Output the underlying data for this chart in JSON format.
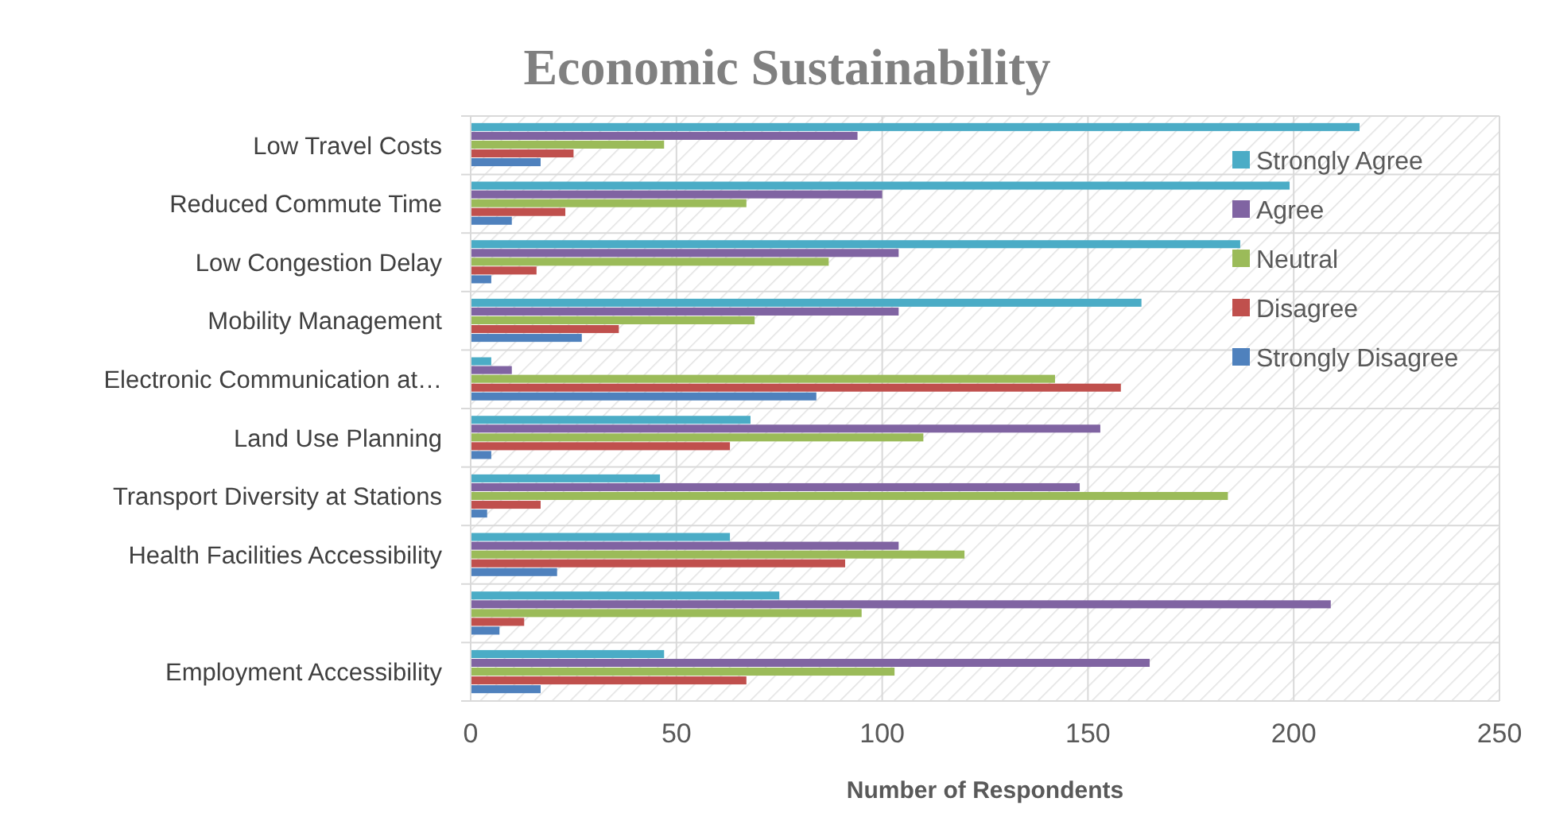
{
  "chart_data": {
    "type": "bar",
    "orientation": "horizontal",
    "title": "Economic Sustainability",
    "xlabel": "Number of Respondents",
    "categories": [
      "Low Travel Costs",
      "Reduced Commute Time",
      "Low Congestion Delay",
      "Mobility Management",
      "Electronic Communication at…",
      "Land Use Planning",
      "Transport Diversity at Stations",
      "Health Facilities Accessibility",
      null,
      "Employment Accessibility"
    ],
    "series": [
      {
        "name": "Strongly Agree",
        "color": "#4bacc6",
        "values": [
          216,
          199,
          187,
          163,
          5,
          68,
          46,
          63,
          75,
          47
        ]
      },
      {
        "name": "Agree",
        "color": "#8064a2",
        "values": [
          94,
          100,
          104,
          104,
          10,
          153,
          148,
          104,
          209,
          165
        ]
      },
      {
        "name": "Neutral",
        "color": "#9bbb59",
        "values": [
          47,
          67,
          87,
          69,
          142,
          110,
          184,
          120,
          95,
          103
        ]
      },
      {
        "name": "Disagree",
        "color": "#c0504d",
        "values": [
          25,
          23,
          16,
          36,
          158,
          63,
          17,
          91,
          13,
          67
        ]
      },
      {
        "name": "Strongly Disagree",
        "color": "#4f81bd",
        "values": [
          17,
          10,
          5,
          27,
          84,
          5,
          4,
          21,
          7,
          17
        ]
      }
    ],
    "xlim": [
      0,
      250
    ],
    "xticks": [
      0,
      50,
      100,
      150,
      200,
      250
    ],
    "grid": true,
    "legend": "top right"
  }
}
